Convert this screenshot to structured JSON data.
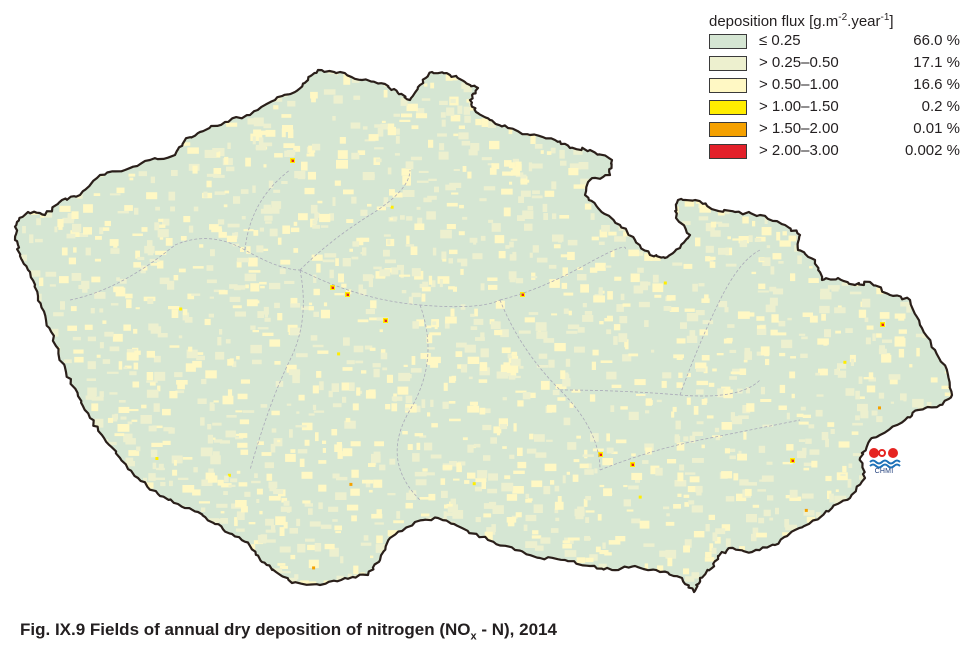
{
  "legend": {
    "title_text": "deposition flux [g.m",
    "title_sup1": "-2",
    "title_mid": ".year",
    "title_sup2": "-1",
    "title_end": "]",
    "items": [
      {
        "range": "≤ 0.25",
        "percent": "66.0 %",
        "color": "#d5e6d3"
      },
      {
        "range": "> 0.25–0.50",
        "percent": "17.1 %",
        "color": "#edf0cf"
      },
      {
        "range": "> 0.50–1.00",
        "percent": "16.6 %",
        "color": "#fff8c4"
      },
      {
        "range": "> 1.00–1.50",
        "percent": "0.2 %",
        "color": "#ffed00"
      },
      {
        "range": "> 1.50–2.00",
        "percent": "0.01 %",
        "color": "#f5a100"
      },
      {
        "range": "> 2.00–3.00",
        "percent": "0.002 %",
        "color": "#e3202a"
      }
    ]
  },
  "logo": {
    "text": "CHMI",
    "colors": {
      "red": "#e52421",
      "blue": "#1d71b8"
    }
  },
  "caption": {
    "prefix": "Fig. IX.9  Fields of annual dry deposition of nitrogen (NO",
    "sub": "x",
    "suffix": " - N), 2014"
  },
  "map": {
    "border_color": "#2a1f1a",
    "region_line_color": "#a9a9b8"
  }
}
